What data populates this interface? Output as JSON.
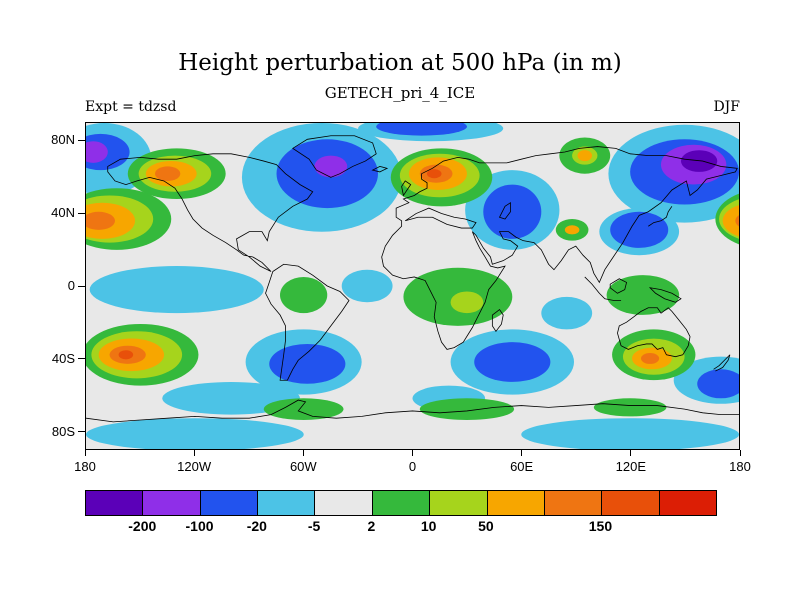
{
  "title": "Height perturbation at 500 hPa (in m)",
  "subtitle": "GETECH_pri_4_ICE",
  "experiment_label": "Expt = tdzsd",
  "season_label": "DJF",
  "axes": {
    "lat_ticks": [
      {
        "label": "80N",
        "lat": 80
      },
      {
        "label": "40N",
        "lat": 40
      },
      {
        "label": "0",
        "lat": 0
      },
      {
        "label": "40S",
        "lat": -40
      },
      {
        "label": "80S",
        "lat": -80
      }
    ],
    "lon_ticks": [
      {
        "label": "180",
        "lon": -180
      },
      {
        "label": "120W",
        "lon": -120
      },
      {
        "label": "60W",
        "lon": -60
      },
      {
        "label": "0",
        "lon": 0
      },
      {
        "label": "60E",
        "lon": 60
      },
      {
        "label": "120E",
        "lon": 120
      },
      {
        "label": "180",
        "lon": 180
      }
    ]
  },
  "colorbar": {
    "cells": [
      {
        "color": "#5b00b8",
        "range": "< -200",
        "hatched": false
      },
      {
        "color": "#8f2fe8",
        "range": "-200 to -100",
        "hatched": false
      },
      {
        "color": "#2253ee",
        "range": "-100 to -20",
        "hatched": false
      },
      {
        "color": "#4cc3e6",
        "range": "-20 to -5",
        "hatched": false
      },
      {
        "color": "#e8e8e8",
        "range": "-5 to 2",
        "hatched": false
      },
      {
        "color": "#35b93c",
        "range": "2 to 10",
        "hatched": false
      },
      {
        "color": "#a6d41c",
        "range": "10 to 50",
        "hatched": false
      },
      {
        "color": "#f7a600",
        "range": "50 to 100",
        "hatched": false
      },
      {
        "color": "#ef7512",
        "range": "100 to 150",
        "hatched": false
      },
      {
        "color": "#e8500a",
        "range": "150 to 200",
        "hatched": false
      },
      {
        "color": "#dc1e05",
        "range": "> 200",
        "hatched": true
      }
    ],
    "labels": [
      {
        "text": "-200",
        "boundary": 1
      },
      {
        "text": "-100",
        "boundary": 2
      },
      {
        "text": "-20",
        "boundary": 3
      },
      {
        "text": "-5",
        "boundary": 4
      },
      {
        "text": "2",
        "boundary": 5
      },
      {
        "text": "10",
        "boundary": 6
      },
      {
        "text": "50",
        "boundary": 7
      },
      {
        "text": "150",
        "boundary": 9
      }
    ]
  },
  "chart_data": {
    "type": "filled-contour-map",
    "variable": "Height perturbation at 500 hPa",
    "units": "m",
    "experiment": "tdzsd",
    "dataset": "GETECH_pri_4_ICE",
    "season": "DJF",
    "projection": "equirectangular",
    "lon_range": [
      -180,
      180
    ],
    "lat_range": [
      -90,
      90
    ],
    "contour_levels": [
      -200,
      -100,
      -20,
      -5,
      2,
      10,
      50,
      100,
      150,
      200
    ],
    "background_level": 4,
    "features_format": [
      "lon",
      "lat",
      "rx_deg",
      "ry_deg",
      "level_index"
    ],
    "features": [
      [
        -50,
        60,
        44,
        30,
        3
      ],
      [
        -170,
        70,
        26,
        20,
        3
      ],
      [
        150,
        62,
        42,
        27,
        3
      ],
      [
        125,
        30,
        22,
        13,
        3
      ],
      [
        55,
        42,
        26,
        22,
        3
      ],
      [
        -130,
        -2,
        48,
        13,
        3
      ],
      [
        -60,
        -42,
        32,
        18,
        3
      ],
      [
        55,
        -42,
        34,
        18,
        3
      ],
      [
        170,
        -52,
        26,
        13,
        3
      ],
      [
        -100,
        -62,
        38,
        9,
        3
      ],
      [
        -25,
        0,
        14,
        9,
        3
      ],
      [
        85,
        -15,
        14,
        9,
        3
      ],
      [
        10,
        87,
        40,
        7,
        3
      ],
      [
        -120,
        -82,
        60,
        9,
        3
      ],
      [
        120,
        -82,
        60,
        9,
        3
      ],
      [
        20,
        -62,
        20,
        7,
        3
      ],
      [
        -47,
        62,
        28,
        19,
        2
      ],
      [
        150,
        63,
        30,
        18,
        2
      ],
      [
        55,
        41,
        16,
        15,
        2
      ],
      [
        125,
        31,
        16,
        10,
        2
      ],
      [
        -58,
        -43,
        21,
        11,
        2
      ],
      [
        55,
        -42,
        21,
        11,
        2
      ],
      [
        -172,
        74,
        16,
        10,
        2
      ],
      [
        170,
        -54,
        13,
        8,
        2
      ],
      [
        5,
        88,
        25,
        5,
        2
      ],
      [
        155,
        67,
        18,
        11,
        1
      ],
      [
        -176,
        74,
        8,
        6,
        1
      ],
      [
        -45,
        66,
        9,
        6,
        1
      ],
      [
        158,
        69,
        10,
        6,
        0
      ],
      [
        -130,
        62,
        27,
        14,
        5
      ],
      [
        -163,
        37,
        30,
        17,
        5
      ],
      [
        197,
        37,
        30,
        17,
        5
      ],
      [
        16,
        60,
        28,
        16,
        5
      ],
      [
        95,
        72,
        14,
        10,
        5
      ],
      [
        88,
        31,
        9,
        6,
        5
      ],
      [
        25,
        -6,
        30,
        16,
        5
      ],
      [
        -60,
        -5,
        13,
        10,
        5
      ],
      [
        127,
        -5,
        20,
        11,
        5
      ],
      [
        -150,
        -38,
        32,
        17,
        5
      ],
      [
        133,
        -38,
        23,
        14,
        5
      ],
      [
        -60,
        -68,
        22,
        6,
        5
      ],
      [
        30,
        -68,
        26,
        6,
        5
      ],
      [
        120,
        -67,
        20,
        5,
        5
      ],
      [
        -131,
        62,
        20,
        10,
        6
      ],
      [
        -167,
        37,
        24,
        13,
        6
      ],
      [
        193,
        37,
        24,
        13,
        6
      ],
      [
        15,
        61,
        22,
        12,
        6
      ],
      [
        -152,
        -38,
        25,
        13,
        6
      ],
      [
        133,
        -39,
        17,
        10,
        6
      ],
      [
        30,
        -9,
        9,
        6,
        6
      ],
      [
        95,
        72,
        7,
        5,
        6
      ],
      [
        -133,
        62,
        14,
        7,
        7
      ],
      [
        -171,
        36,
        18,
        10,
        7
      ],
      [
        189,
        36,
        18,
        10,
        7
      ],
      [
        14,
        62,
        16,
        9,
        7
      ],
      [
        -155,
        -38,
        18,
        9,
        7
      ],
      [
        132,
        -40,
        11,
        6,
        7
      ],
      [
        88,
        31,
        4,
        2.5,
        7
      ],
      [
        95,
        72,
        4,
        3,
        7
      ],
      [
        13,
        62,
        9,
        5,
        8
      ],
      [
        -157,
        -38,
        10,
        5,
        8
      ],
      [
        131,
        -40,
        5,
        3,
        8
      ],
      [
        -135,
        62,
        7,
        4,
        8
      ],
      [
        -173,
        36,
        9,
        5,
        8
      ],
      [
        187,
        36,
        9,
        5,
        8
      ],
      [
        -158,
        -38,
        4,
        2.5,
        9
      ],
      [
        12,
        62,
        4,
        2.5,
        9
      ]
    ]
  }
}
